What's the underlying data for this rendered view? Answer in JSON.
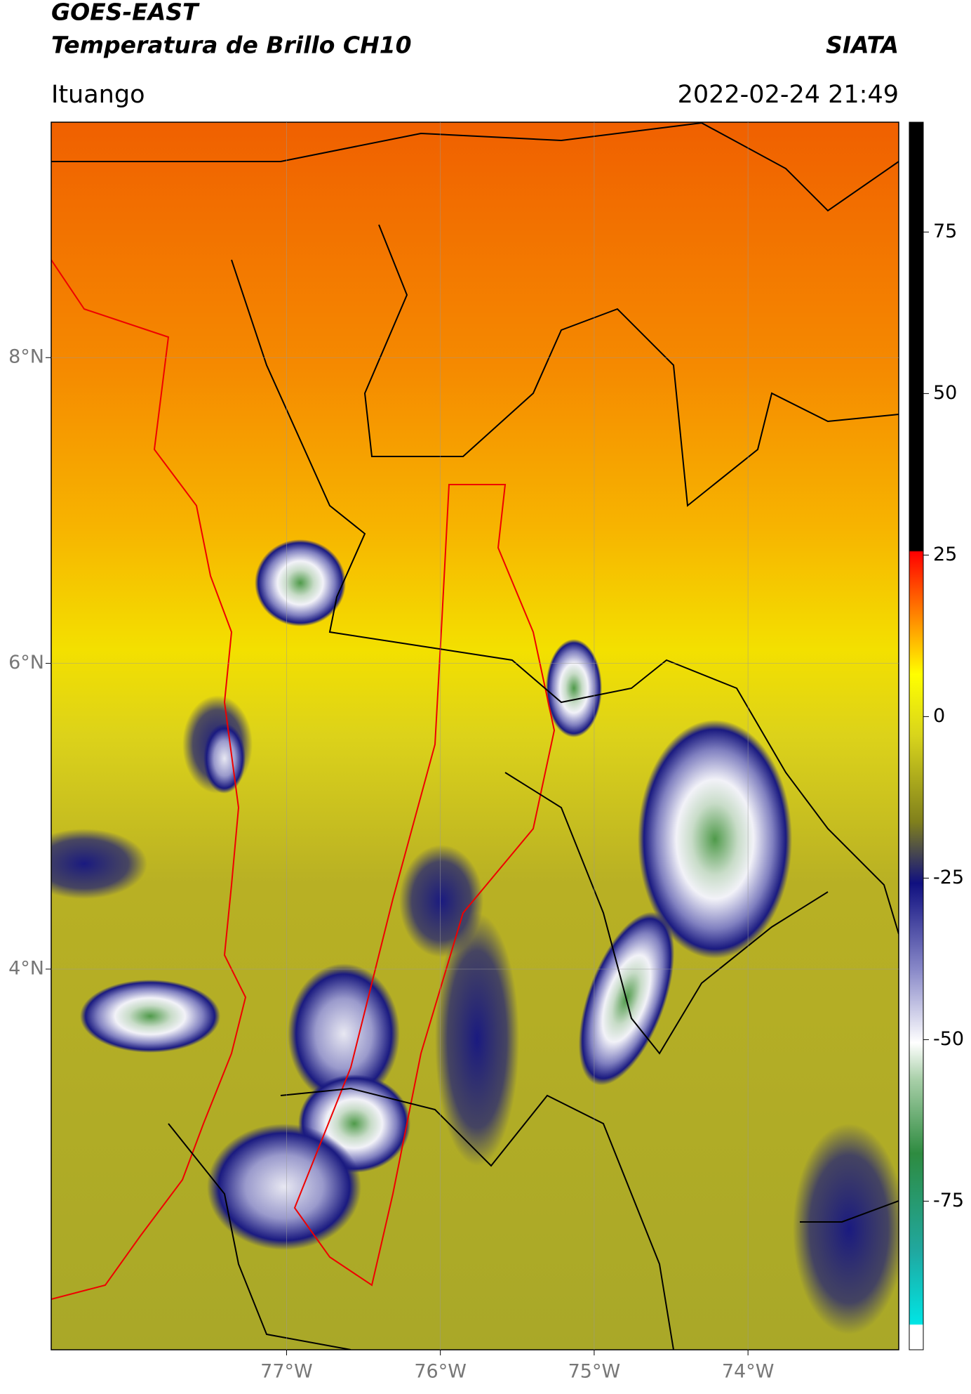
{
  "header": {
    "title": "GOES-EAST",
    "subtitle": "Temperatura de Brillo CH10",
    "source": "SIATA",
    "location": "Ituango",
    "datetime": "2022-02-24 21:49"
  },
  "map": {
    "xlim": [
      -78.53,
      -73.02
    ],
    "ylim": [
      1.51,
      9.54
    ],
    "xticks": [
      {
        "value": -77,
        "label": "77°W"
      },
      {
        "value": -76,
        "label": "76°W"
      },
      {
        "value": -75,
        "label": "75°W"
      },
      {
        "value": -74,
        "label": "74°W"
      }
    ],
    "yticks": [
      {
        "value": 4,
        "label": "4°N"
      },
      {
        "value": 6,
        "label": "6°N"
      },
      {
        "value": 8,
        "label": "8°N"
      }
    ],
    "grid": true
  },
  "colorbar": {
    "lim": [
      -98,
      92
    ],
    "ticks": [
      -75,
      -50,
      -25,
      0,
      25,
      50,
      75
    ]
  }
}
